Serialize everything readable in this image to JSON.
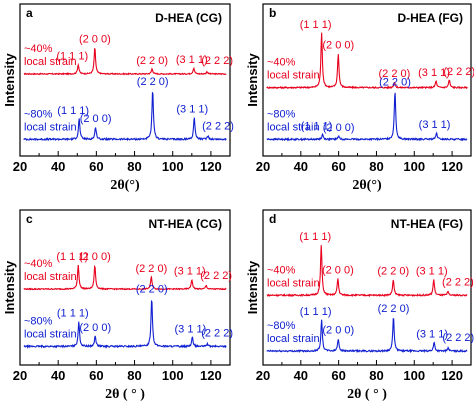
{
  "chart_data": [
    {
      "type": "line",
      "panel": "a",
      "title": "D-HEA (CG)",
      "ylabel": "Intensity",
      "xlabel": "2θ(°)",
      "xlim": [
        20,
        130
      ],
      "xticks": [
        20,
        40,
        60,
        80,
        100,
        120
      ],
      "series": [
        {
          "color": "#e8001c",
          "strain_label": [
            "~40%",
            "local strain"
          ],
          "peaks": [
            {
              "x": 50.5,
              "h": 0.22,
              "label": "(1 1 1)"
            },
            {
              "x": 59.2,
              "h": 0.62,
              "label": "(2 0 0)"
            },
            {
              "x": 89.2,
              "h": 0.12,
              "label": "(2 2 0)"
            },
            {
              "x": 111.0,
              "h": 0.14,
              "label": "(3 1 1)"
            },
            {
              "x": 118.0,
              "h": 0.05,
              "label": "(2 2 2)"
            }
          ]
        },
        {
          "color": "#1020d0",
          "strain_label": [
            "~80%",
            "local strain"
          ],
          "peaks": [
            {
              "x": 51.0,
              "h": 0.3,
              "label": "(1 1 1)"
            },
            {
              "x": 59.6,
              "h": 0.18,
              "label": "(2 0 0)"
            },
            {
              "x": 89.5,
              "h": 0.72,
              "label": "(2 2 0)"
            },
            {
              "x": 111.3,
              "h": 0.32,
              "label": "(3 1 1)"
            },
            {
              "x": 118.5,
              "h": 0.05,
              "label": "(2 2 2)"
            }
          ]
        }
      ]
    },
    {
      "type": "line",
      "panel": "b",
      "title": "D-HEA (FG)",
      "ylabel": "Intensity",
      "xlabel": "2θ(°)",
      "xlim": [
        20,
        130
      ],
      "xticks": [
        20,
        40,
        60,
        80,
        100,
        120
      ],
      "series": [
        {
          "color": "#e8001c",
          "strain_label": [
            "~40%",
            "local strain"
          ],
          "peaks": [
            {
              "x": 51.0,
              "h": 1.0,
              "label": "(1 1 1)"
            },
            {
              "x": 59.8,
              "h": 0.62,
              "label": "(2 0 0)"
            },
            {
              "x": 89.5,
              "h": 0.1,
              "label": "(2 2 0)"
            },
            {
              "x": 111.5,
              "h": 0.12,
              "label": "(3 1 1)"
            },
            {
              "x": 118.5,
              "h": 0.14,
              "label": "(2 2 2)"
            }
          ]
        },
        {
          "color": "#1020d0",
          "strain_label": [
            "~80%",
            "local strain"
          ],
          "peaks": [
            {
              "x": 51.5,
              "h": 0.08,
              "label": "(1 1 1)"
            },
            {
              "x": 60.0,
              "h": 0.05,
              "label": "(2 0 0)"
            },
            {
              "x": 89.8,
              "h": 0.8,
              "label": "(2 2 0)"
            },
            {
              "x": 111.8,
              "h": 0.1,
              "label": "(3 1 1)"
            }
          ]
        }
      ]
    },
    {
      "type": "line",
      "panel": "c",
      "title": "NT-HEA (CG)",
      "ylabel": "Intensity",
      "xlabel": "2θ ( ° )",
      "xlim": [
        20,
        130
      ],
      "xticks": [
        20,
        40,
        60,
        80,
        100,
        120
      ],
      "series": [
        {
          "color": "#e8001c",
          "strain_label": [
            "~40%",
            "local strain"
          ],
          "peaks": [
            {
              "x": 50.5,
              "h": 0.55,
              "label": "(1 1 1)"
            },
            {
              "x": 59.2,
              "h": 0.55,
              "label": "(2 0 0)"
            },
            {
              "x": 88.8,
              "h": 0.28,
              "label": "(2 2 0)"
            },
            {
              "x": 110.0,
              "h": 0.22,
              "label": "(3 1 1)"
            },
            {
              "x": 117.5,
              "h": 0.08,
              "label": "(2 2 2)"
            }
          ]
        },
        {
          "color": "#1020d0",
          "strain_label": [
            "~80%",
            "local strain"
          ],
          "peaks": [
            {
              "x": 50.8,
              "h": 0.38,
              "label": "(1 1 1)"
            },
            {
              "x": 59.4,
              "h": 0.16,
              "label": "(2 0 0)"
            },
            {
              "x": 89.0,
              "h": 0.75,
              "label": "(2 2 0)"
            },
            {
              "x": 110.3,
              "h": 0.14,
              "label": "(3 1 1)"
            },
            {
              "x": 118.0,
              "h": 0.04,
              "label": "(2 2 2)"
            }
          ]
        }
      ]
    },
    {
      "type": "line",
      "panel": "d",
      "title": "NT-HEA (FG)",
      "ylabel": "Intensity",
      "xlabel": "2θ ( ° )",
      "xlim": [
        20,
        130
      ],
      "xticks": [
        20,
        40,
        60,
        80,
        100,
        120
      ],
      "series": [
        {
          "color": "#e8001c",
          "strain_label": [
            "~40%",
            "local strain"
          ],
          "peaks": [
            {
              "x": 50.8,
              "h": 0.9,
              "label": "(1 1 1)"
            },
            {
              "x": 59.6,
              "h": 0.3,
              "label": "(2 0 0)"
            },
            {
              "x": 88.9,
              "h": 0.28,
              "label": "(2 2 0)"
            },
            {
              "x": 110.3,
              "h": 0.28,
              "label": "(3 1 1)"
            },
            {
              "x": 117.8,
              "h": 0.06,
              "label": "(2 2 2)"
            }
          ]
        },
        {
          "color": "#1020d0",
          "strain_label": [
            "~80%",
            "local strain"
          ],
          "peaks": [
            {
              "x": 51.0,
              "h": 0.5,
              "label": "(1 1 1)"
            },
            {
              "x": 59.8,
              "h": 0.2,
              "label": "(2 0 0)"
            },
            {
              "x": 89.0,
              "h": 0.55,
              "label": "(2 2 0)"
            },
            {
              "x": 110.5,
              "h": 0.14,
              "label": "(3 1 1)"
            },
            {
              "x": 118.0,
              "h": 0.05,
              "label": "(2 2 2)"
            }
          ]
        }
      ]
    }
  ]
}
